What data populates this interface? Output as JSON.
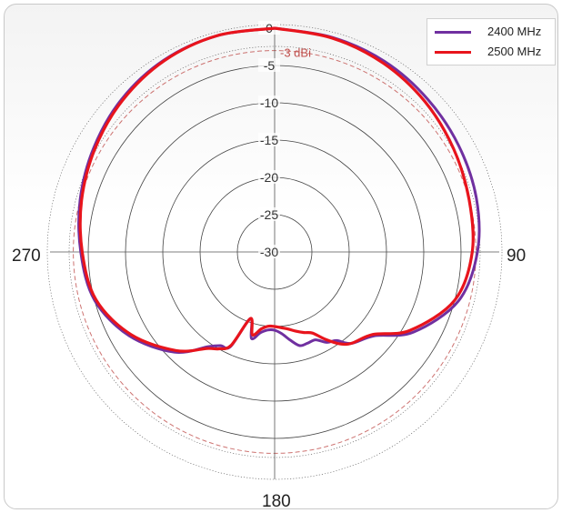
{
  "chart_data": {
    "type": "polar-line",
    "angle_labels": {
      "top": "0",
      "right": "90",
      "bottom": "180",
      "left": "270"
    },
    "radial_ticks": [
      0,
      -5,
      -10,
      -15,
      -20,
      -25,
      -30
    ],
    "radial_range": [
      -30,
      0
    ],
    "reference_circle": {
      "value": -3,
      "label": "-3 dBi",
      "color": "#c0504d"
    },
    "grid": true,
    "legend_position": "top-right",
    "series": [
      {
        "name": "2400 MHz",
        "color": "#7030a0",
        "theta_deg": [
          0,
          15,
          30,
          45,
          60,
          75,
          90,
          105,
          120,
          130,
          140,
          145,
          150,
          155,
          160,
          165,
          170,
          175,
          180,
          185,
          190,
          195,
          200,
          205,
          210,
          215,
          225,
          240,
          255,
          270,
          285,
          300,
          315,
          330,
          345,
          360
        ],
        "gain_dbi": [
          0,
          -0.2,
          -0.5,
          -1.0,
          -1.5,
          -2.0,
          -2.8,
          -4.5,
          -8.5,
          -12.5,
          -14.0,
          -15.5,
          -16.0,
          -17.0,
          -17.0,
          -17.0,
          -18.0,
          -19.0,
          -19.5,
          -19.5,
          -19.0,
          -18.0,
          -20.5,
          -16.0,
          -15.5,
          -14.5,
          -11.0,
          -7.5,
          -5.0,
          -4.0,
          -3.0,
          -2.0,
          -1.0,
          -0.3,
          0,
          0
        ]
      },
      {
        "name": "2500 MHz",
        "color": "#e8141c",
        "theta_deg": [
          0,
          15,
          30,
          45,
          60,
          75,
          90,
          105,
          120,
          130,
          140,
          145,
          150,
          155,
          160,
          165,
          170,
          175,
          180,
          185,
          190,
          195,
          200,
          205,
          210,
          215,
          225,
          240,
          255,
          270,
          285,
          300,
          315,
          330,
          345,
          360
        ],
        "gain_dbi": [
          0,
          -0.3,
          -0.8,
          -1.5,
          -2.3,
          -3.0,
          -3.5,
          -5.0,
          -9.0,
          -12.8,
          -14.0,
          -15.0,
          -16.5,
          -18.0,
          -18.5,
          -19.0,
          -19.5,
          -19.8,
          -20.0,
          -20.0,
          -19.5,
          -18.5,
          -20.5,
          -16.2,
          -15.0,
          -14.2,
          -11.3,
          -7.8,
          -5.2,
          -4.2,
          -3.2,
          -2.2,
          -1.2,
          -0.4,
          0,
          0
        ]
      }
    ]
  },
  "legend": {
    "items": [
      {
        "label": "2400 MHz",
        "color": "#7030a0"
      },
      {
        "label": "2500 MHz",
        "color": "#e8141c"
      }
    ]
  }
}
